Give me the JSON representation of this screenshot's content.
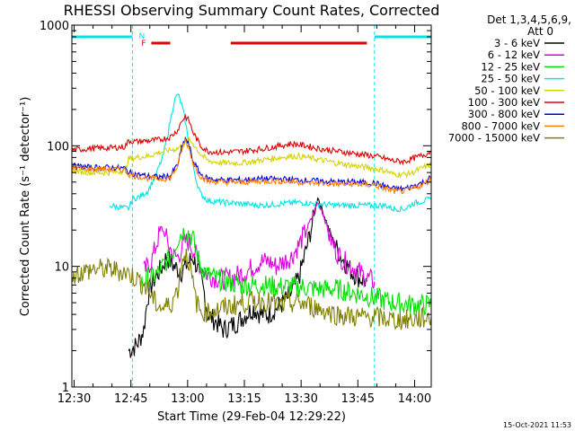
{
  "colors": {
    "background": "#ffffff",
    "axes": "#000000",
    "night_markers": "#00e5e5",
    "flag_bars": "#e00000"
  },
  "chart_data": {
    "type": "line",
    "title": "RHESSI Observing Summary Count Rates, Corrected",
    "xlabel": "Start Time (29-Feb-04 12:29:22)",
    "ylabel": "Corrected Count Rate (s⁻¹ detector⁻¹)",
    "x_unit": "minutes after 12:29:22",
    "xlim": [
      0,
      95
    ],
    "ylim": [
      1,
      1000
    ],
    "yscale": "log",
    "grid": false,
    "xticks": [
      {
        "x": 0.6,
        "label": "12:30"
      },
      {
        "x": 15.6,
        "label": "12:45"
      },
      {
        "x": 30.6,
        "label": "13:00"
      },
      {
        "x": 45.6,
        "label": "13:15"
      },
      {
        "x": 60.6,
        "label": "13:30"
      },
      {
        "x": 75.6,
        "label": "13:45"
      },
      {
        "x": 90.6,
        "label": "14:00"
      }
    ],
    "yticks": [
      {
        "y": 1,
        "label": "1"
      },
      {
        "y": 10,
        "label": "10"
      },
      {
        "y": 100,
        "label": "100"
      },
      {
        "y": 1000,
        "label": "1000"
      }
    ],
    "legend_header": [
      "Det 1,3,4,5,6,9,",
      "Att 0"
    ],
    "legend_position": "right",
    "flag_letters": [
      {
        "x": 18.5,
        "text": "N",
        "color": "#00e5e5",
        "level": 1
      },
      {
        "x": 19.0,
        "text": "F",
        "color": "#e00000",
        "level": 2
      }
    ],
    "night_periods": [
      [
        0,
        16
      ],
      [
        80,
        95
      ]
    ],
    "flag_bars": [
      {
        "type": "night",
        "x0": 0,
        "x1": 16,
        "color": "#00e5e5"
      },
      {
        "type": "night",
        "x0": 80,
        "x1": 95,
        "color": "#00e5e5"
      },
      {
        "type": "flare",
        "x0": 21,
        "x1": 26,
        "color": "#e00000"
      },
      {
        "type": "flare",
        "x0": 42,
        "x1": 78,
        "color": "#e00000"
      }
    ],
    "footer_date": "15-Oct-2021 11:53",
    "series": [
      {
        "name": "3 - 6 keV",
        "color": "#000000",
        "x": [
          15,
          17,
          18,
          19,
          20,
          21,
          22,
          23,
          24,
          25,
          26,
          27,
          28,
          29,
          30,
          31,
          32,
          33,
          34,
          35,
          36,
          38,
          40,
          42,
          44,
          46,
          48,
          50,
          52,
          54,
          56,
          58,
          60,
          62,
          64,
          65,
          66,
          67,
          68,
          70,
          72,
          74,
          76,
          78
        ],
        "y": [
          2.0,
          2.2,
          2.5,
          3.0,
          5.5,
          7.0,
          8.0,
          9.0,
          10.0,
          12.0,
          11.0,
          10.0,
          9.5,
          9.0,
          10.0,
          11.0,
          12.0,
          10.0,
          8.0,
          6.0,
          4.0,
          3.5,
          3.0,
          3.2,
          3.5,
          4.0,
          4.5,
          4.0,
          4.0,
          4.5,
          5.0,
          6.0,
          8.0,
          14.0,
          26.0,
          38.0,
          30.0,
          25.0,
          20.0,
          14.0,
          11.0,
          9.0,
          8.0,
          7.5
        ]
      },
      {
        "name": "6 - 12 keV",
        "color": "#e000e0",
        "x": [
          19,
          20,
          21,
          22,
          23,
          24,
          25,
          26,
          27,
          28,
          29,
          30,
          31,
          32,
          33,
          34,
          36,
          38,
          40,
          42,
          44,
          46,
          48,
          50,
          52,
          54,
          56,
          58,
          60,
          62,
          64,
          65,
          66,
          67,
          68,
          70,
          72,
          74,
          76,
          78,
          80
        ],
        "y": [
          9.0,
          10.0,
          11.0,
          14.0,
          18.0,
          20.0,
          17.0,
          14.0,
          12.0,
          12.0,
          14.0,
          16.0,
          16.0,
          14.0,
          12.0,
          10.0,
          8.5,
          8.0,
          7.8,
          8.0,
          8.5,
          9.0,
          10.0,
          11.0,
          11.0,
          10.0,
          11.0,
          12.0,
          15.0,
          20.0,
          28.0,
          34.0,
          30.0,
          24.0,
          18.0,
          13.0,
          11.0,
          10.0,
          9.0,
          8.0,
          7.5
        ]
      },
      {
        "name": "12 - 25 keV",
        "color": "#00e000",
        "x": [
          18,
          19,
          20,
          21,
          22,
          23,
          24,
          25,
          26,
          27,
          28,
          29,
          30,
          31,
          32,
          33,
          34,
          36,
          40,
          45,
          50,
          55,
          60,
          65,
          70,
          75,
          80,
          85,
          90,
          95
        ],
        "y": [
          7.0,
          7.5,
          8.0,
          8.0,
          8.5,
          9.0,
          10.0,
          11.0,
          12.0,
          14.0,
          17.0,
          19.0,
          19.5,
          19.0,
          17.0,
          13.0,
          10.0,
          8.5,
          7.5,
          7.0,
          7.0,
          6.8,
          6.8,
          6.5,
          6.5,
          6.0,
          5.5,
          5.0,
          4.8,
          4.8
        ]
      },
      {
        "name": "25 - 50 keV",
        "color": "#00e5e5",
        "x": [
          10,
          15,
          16,
          18,
          20,
          22,
          24,
          25,
          26,
          27,
          28,
          29,
          30,
          31,
          32,
          33,
          34,
          36,
          40,
          45,
          50,
          55,
          60,
          65,
          70,
          75,
          80,
          83,
          85,
          88,
          90,
          93,
          95
        ],
        "y": [
          32.0,
          30.0,
          36.0,
          38.0,
          42.0,
          55.0,
          80.0,
          110.0,
          160.0,
          230.0,
          270.0,
          220.0,
          160.0,
          100.0,
          70.0,
          50.0,
          40.0,
          35.0,
          34.0,
          33.0,
          32.0,
          33.0,
          34.0,
          33.0,
          32.0,
          32.0,
          32.0,
          32.0,
          30.0,
          30.0,
          33.0,
          35.0,
          36.0
        ]
      },
      {
        "name": "50 - 100 keV",
        "color": "#d4d400",
        "x": [
          0,
          5,
          10,
          14,
          15,
          17,
          20,
          23,
          26,
          28,
          30,
          31,
          32,
          34,
          36,
          40,
          45,
          50,
          55,
          58,
          60,
          62,
          65,
          70,
          75,
          80,
          83,
          85,
          88,
          90,
          93,
          95
        ],
        "y": [
          62.0,
          60.0,
          60.0,
          62.0,
          78.0,
          80.0,
          82.0,
          88.0,
          92.0,
          95.0,
          105.0,
          110.0,
          105.0,
          85.0,
          75.0,
          72.0,
          72.0,
          76.0,
          80.0,
          82.0,
          82.0,
          80.0,
          77.0,
          72.0,
          68.0,
          65.0,
          62.0,
          58.0,
          58.0,
          60.0,
          66.0,
          70.0
        ]
      },
      {
        "name": "100 - 300 keV",
        "color": "#e00000",
        "x": [
          0,
          5,
          10,
          14,
          15,
          17,
          20,
          23,
          26,
          28,
          29,
          30,
          31,
          32,
          34,
          36,
          40,
          45,
          50,
          55,
          58,
          60,
          62,
          65,
          70,
          75,
          80,
          83,
          85,
          88,
          90,
          93,
          95
        ],
        "y": [
          92.0,
          95.0,
          96.0,
          98.0,
          110.0,
          108.0,
          110.0,
          112.0,
          118.0,
          135.0,
          160.0,
          175.0,
          160.0,
          130.0,
          100.0,
          90.0,
          88.0,
          90.0,
          94.0,
          100.0,
          104.0,
          102.0,
          100.0,
          95.0,
          90.0,
          86.0,
          82.0,
          78.0,
          75.0,
          74.0,
          78.0,
          84.0,
          90.0
        ]
      },
      {
        "name": "300 - 800 keV",
        "color": "#0000e0",
        "x": [
          0,
          5,
          10,
          14,
          15,
          17,
          20,
          23,
          26,
          28,
          29,
          30,
          31,
          32,
          34,
          36,
          40,
          45,
          50,
          55,
          60,
          65,
          70,
          75,
          80,
          83,
          85,
          88,
          90,
          93,
          95
        ],
        "y": [
          68.0,
          66.0,
          66.0,
          65.0,
          60.0,
          58.0,
          56.0,
          55.0,
          56.0,
          70.0,
          95.0,
          115.0,
          100.0,
          75.0,
          58.0,
          53.0,
          52.0,
          52.0,
          53.0,
          53.0,
          52.0,
          51.0,
          50.0,
          50.0,
          49.0,
          46.0,
          44.0,
          44.0,
          46.0,
          50.0,
          55.0
        ]
      },
      {
        "name": "800 - 7000 keV",
        "color": "#ff8000",
        "x": [
          0,
          5,
          10,
          14,
          15,
          17,
          20,
          23,
          26,
          28,
          29,
          30,
          31,
          32,
          34,
          36,
          40,
          45,
          50,
          55,
          60,
          65,
          70,
          75,
          80,
          83,
          85,
          88,
          90,
          93,
          95
        ],
        "y": [
          66.0,
          64.0,
          64.0,
          63.0,
          58.0,
          56.0,
          54.0,
          53.0,
          54.0,
          68.0,
          92.0,
          110.0,
          96.0,
          72.0,
          56.0,
          51.0,
          50.0,
          50.0,
          51.0,
          51.0,
          50.0,
          49.0,
          48.0,
          48.0,
          47.0,
          44.0,
          42.0,
          42.0,
          44.0,
          48.0,
          53.0
        ]
      },
      {
        "name": "7000 - 15000 keV",
        "color": "#808000",
        "x": [
          0,
          3,
          6,
          10,
          14,
          17,
          20,
          22,
          24,
          26,
          28,
          29,
          30,
          31,
          32,
          33,
          34,
          36,
          40,
          45,
          50,
          55,
          60,
          65,
          70,
          75,
          80,
          85,
          90,
          95
        ],
        "y": [
          8.5,
          9.0,
          9.5,
          9.5,
          9.0,
          8.0,
          6.5,
          5.0,
          4.5,
          4.8,
          6.5,
          11.0,
          13.0,
          11.0,
          7.0,
          5.0,
          4.2,
          4.2,
          4.5,
          5.0,
          5.2,
          4.8,
          5.0,
          4.5,
          4.0,
          3.8,
          3.8,
          3.6,
          3.6,
          3.8
        ]
      }
    ]
  }
}
